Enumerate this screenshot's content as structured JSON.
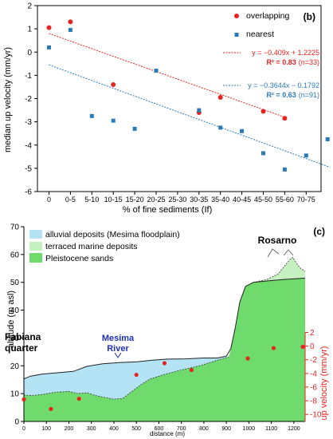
{
  "chart_data": [
    {
      "type": "scatter",
      "panel_label": "(b)",
      "xlabel": "% of fine sediments (If)",
      "ylabel": "median up velocity (mm/yr)",
      "categories": [
        "0",
        "0-5",
        "5-10",
        "10-15",
        "15-20",
        "20-25",
        "25-30",
        "30-35",
        "35-40",
        "40-45",
        "45-50",
        "55-60",
        "70-75"
      ],
      "yticks": [
        "-6",
        "-5",
        "-4",
        "-3",
        "-2",
        "-1",
        "0",
        "1",
        "2"
      ],
      "ylim": [
        -6,
        2
      ],
      "grid": false,
      "legend_position": "top-right",
      "series": [
        {
          "name": "overlapping",
          "color": "#e52421",
          "marker": "circle",
          "x": [
            0,
            1,
            3,
            7,
            8,
            10,
            11
          ],
          "y": [
            1.05,
            1.3,
            -1.4,
            -2.6,
            -1.95,
            -2.55,
            -2.85
          ],
          "trend": {
            "equation": "y = −0.409x + 1.2225",
            "r2": "R² = 0.83",
            "n": "(n=33)",
            "line": [
              [
                0,
                0.8
              ],
              [
                11,
                -2.8
              ]
            ]
          }
        },
        {
          "name": "nearest",
          "color": "#2a7ab8",
          "marker": "square",
          "x": [
            0,
            1,
            2,
            3,
            4,
            5,
            7,
            8,
            9,
            10,
            11,
            12,
            13
          ],
          "y": [
            0.2,
            0.95,
            -2.75,
            -2.95,
            -3.3,
            -0.8,
            -2.5,
            -3.25,
            -3.4,
            -4.35,
            -5.05,
            -4.45,
            -3.75
          ],
          "trend": {
            "equation": "y = −0.3644x − 0.1792",
            "r2": "R² = 0.63",
            "n": "(n=91)",
            "line": [
              [
                0,
                -0.55
              ],
              [
                13.1,
                -4.95
              ]
            ]
          }
        }
      ]
    },
    {
      "type": "area",
      "panel_label": "(c)",
      "xlabel": "distance (m)",
      "ylabel": "altitude (m asl)",
      "y2label": "up velocity (mm/yr)",
      "xlim": [
        0,
        1250
      ],
      "ylim": [
        0,
        70
      ],
      "xticks": [
        "0",
        "100",
        "200",
        "300",
        "400",
        "500",
        "600",
        "700",
        "800",
        "900",
        "1000",
        "1100",
        "1200"
      ],
      "yticks": [
        "0",
        "10",
        "20",
        "30",
        "40",
        "50",
        "60",
        "70"
      ],
      "y2lim": [
        -10,
        2
      ],
      "y2ticks": [
        "2",
        "0",
        "-2",
        "-4",
        "-6",
        "-8",
        "-10"
      ],
      "legend": [
        {
          "label": "alluvial deposits (Mesima floodplain)",
          "color": "#b3e3f5"
        },
        {
          "label": "terraced marine deposits",
          "color": "#c5f0c0"
        },
        {
          "label": "Pleistocene sands",
          "color": "#70db6d"
        }
      ],
      "annotations": [
        {
          "text": "Fabiana",
          "color": "#000000"
        },
        {
          "text": "quarter",
          "color": "#000000"
        },
        {
          "text": "Mesima",
          "color": "#1f2fb8"
        },
        {
          "text": "River",
          "color": "#1f2fb8"
        },
        {
          "text": "Rosarno",
          "color": "#000000"
        }
      ],
      "velocity_points": {
        "color": "#e52421",
        "x": [
          0,
          120,
          245,
          500,
          625,
          745,
          995,
          1110,
          1240
        ],
        "y": [
          -7.8,
          -9.2,
          -7.7,
          -4.2,
          -2.5,
          -3.5,
          -1.8,
          -0.3,
          -0.1
        ]
      }
    }
  ]
}
